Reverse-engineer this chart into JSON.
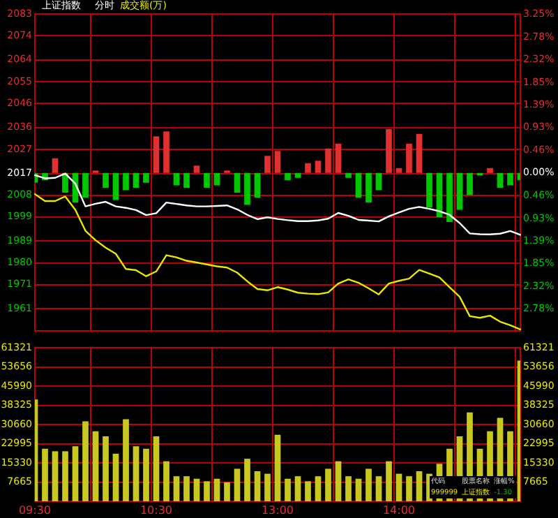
{
  "chart_data": [
    {
      "type": "bar",
      "title": "上证指数",
      "subtitle": "分时",
      "annotations": [
        "成交额(万)"
      ],
      "categories": [
        null,
        null,
        null,
        null,
        null,
        null,
        null,
        null,
        null,
        null,
        null,
        null,
        null,
        null,
        null,
        null,
        null,
        null,
        null,
        null,
        null,
        null,
        null,
        null,
        null,
        null,
        null,
        null,
        null,
        null,
        null,
        null,
        null,
        null,
        null,
        null,
        null,
        null,
        null,
        null,
        null,
        null,
        null,
        null,
        null,
        null,
        null,
        null,
        null
      ],
      "ylim": [
        1952,
        2083
      ],
      "yticks": [
        1961,
        1971,
        1980,
        1989,
        1999,
        2008,
        2017,
        2027,
        2036,
        2046,
        2055,
        2064,
        2074,
        2083
      ],
      "y2lim": [
        -3.22,
        3.25
      ],
      "y2ticks": [
        {
          "value": -2.78,
          "label": "2.78%"
        },
        {
          "value": -2.32,
          "label": "2.32%"
        },
        {
          "value": -1.85,
          "label": "1.85%"
        },
        {
          "value": -1.39,
          "label": "1.39%"
        },
        {
          "value": -0.93,
          "label": "0.93%"
        },
        {
          "value": -0.46,
          "label": "0.46%"
        },
        {
          "value": 0,
          "label": "0.00%"
        },
        {
          "value": 0.46,
          "label": "0.46%"
        },
        {
          "value": 0.93,
          "label": "0.93%"
        },
        {
          "value": 1.39,
          "label": "1.39%"
        },
        {
          "value": 1.85,
          "label": "1.85%"
        },
        {
          "value": 2.32,
          "label": "2.32%"
        },
        {
          "value": 2.78,
          "label": "2.78%"
        },
        {
          "value": 3.25,
          "label": "3.25%"
        }
      ],
      "tick_labels": "y",
      "grid": true,
      "legend": false,
      "series": [
        {
          "axis": "y2",
          "values": [
            -0.2,
            -0.15,
            0.3,
            -0.4,
            -0.6,
            -0.5,
            0.05,
            -0.3,
            -0.55,
            -0.35,
            -0.3,
            -0.2,
            0.75,
            0.85,
            -0.25,
            -0.3,
            0.15,
            -0.3,
            -0.25,
            0.05,
            -0.4,
            -0.65,
            -0.5,
            0.35,
            0.45,
            -0.15,
            -0.1,
            0.2,
            0.25,
            0.5,
            0.6,
            -0.1,
            -0.5,
            -0.6,
            -0.35,
            0.9,
            0.1,
            0.6,
            0.8,
            -0.7,
            -0.9,
            -1.0,
            -0.75,
            -0.45,
            -0.05,
            0.1,
            -0.3,
            -0.25,
            -0.15
          ],
          "colors": [
            "#00c800",
            "#00c800",
            "#e03030",
            "#00c800",
            "#00c800",
            "#00c800",
            "#e03030",
            "#00c800",
            "#00c800",
            "#00c800",
            "#00c800",
            "#00c800",
            "#e03030",
            "#e03030",
            "#00c800",
            "#00c800",
            "#e03030",
            "#00c800",
            "#00c800",
            "#e03030",
            "#00c800",
            "#00c800",
            "#00c800",
            "#e03030",
            "#e03030",
            "#00c800",
            "#00c800",
            "#e03030",
            "#e03030",
            "#e03030",
            "#e03030",
            "#00c800",
            "#00c800",
            "#00c800",
            "#00c800",
            "#e03030",
            "#e03030",
            "#e03030",
            "#e03030",
            "#00c800",
            "#00c800",
            "#00c800",
            "#00c800",
            "#00c800",
            "#00c800",
            "#e03030",
            "#00c800",
            "#00c800",
            "#00c800"
          ]
        },
        {
          "type": "line",
          "color": "#ffffff",
          "values": [
            2016.3,
            2015,
            2015.2,
            2017,
            2012.8,
            2003.4,
            2004.5,
            2005.3,
            2003.4,
            2002.8,
            2001.9,
            1999.8,
            2000.6,
            2005,
            2004.4,
            2003.8,
            2003.4,
            2003.4,
            2003.6,
            2003.8,
            2002.2,
            1999.9,
            1998.1,
            1998.9,
            1998.2,
            1997.7,
            1997.3,
            1997.3,
            1997.6,
            1998.3,
            2000.7,
            1999.5,
            1997.8,
            1997.5,
            1997.2,
            1999.3,
            2000.9,
            2002.4,
            2003.2,
            2002.4,
            2001.4,
            1999.9,
            1996.5,
            1992.2,
            1991.9,
            1991.8,
            1992.1,
            1993.2,
            1991.6
          ]
        },
        {
          "type": "line",
          "color": "#e8e800",
          "values": [
            2008.5,
            2005.6,
            2005.6,
            2007.5,
            2002,
            1993.3,
            1989.4,
            1986.3,
            1983.8,
            1977.5,
            1977,
            1974.5,
            1976.5,
            1983.2,
            1982.3,
            1980.9,
            1980.2,
            1979.4,
            1978.6,
            1978.1,
            1976,
            1972.4,
            1969.2,
            1968.7,
            1970,
            1969,
            1967.7,
            1967.3,
            1967.1,
            1967.8,
            1971.5,
            1973.2,
            1971.8,
            1969.5,
            1967,
            1971.5,
            1972.6,
            1973.5,
            1977.1,
            1975.6,
            1974,
            1970,
            1966,
            1958,
            1957.3,
            1958.2,
            1955.7,
            1954.2,
            1952.5
          ]
        }
      ]
    },
    {
      "type": "bar",
      "annotations": [
        "代码",
        "股票名称",
        "涨幅%",
        "999999",
        "上证指数",
        "-1.30"
      ],
      "categories": [
        "09:30",
        null,
        null,
        null,
        null,
        null,
        null,
        null,
        null,
        null,
        null,
        null,
        "10:30",
        null,
        null,
        null,
        null,
        null,
        null,
        null,
        null,
        null,
        null,
        null,
        "13:00",
        null,
        null,
        null,
        null,
        null,
        null,
        null,
        null,
        null,
        null,
        null,
        "14:00",
        null,
        null,
        null,
        null,
        null,
        null,
        null,
        null,
        null,
        null,
        null,
        null
      ],
      "ylim": [
        0,
        61321
      ],
      "yticks": [
        7665,
        15330,
        22995,
        30660,
        38325,
        45990,
        53656,
        61321
      ],
      "y2lim": [
        0,
        61321
      ],
      "y2ticks": [
        7665,
        15330,
        22995,
        30660,
        38325,
        45990,
        53656,
        61321
      ],
      "grid": true,
      "legend": false,
      "series": [
        {
          "color": "#c8c820",
          "values": [
            40700,
            21000,
            20000,
            20000,
            22000,
            32000,
            28000,
            26000,
            19000,
            32800,
            22000,
            21000,
            26000,
            16000,
            10000,
            10000,
            9000,
            8000,
            9000,
            7600,
            13000,
            17000,
            12000,
            11000,
            26600,
            9000,
            10000,
            8000,
            10000,
            13000,
            16000,
            10000,
            9000,
            13000,
            10000,
            16000,
            11000,
            10000,
            12000,
            11000,
            15000,
            21000,
            26000,
            35500,
            21000,
            28000,
            33400,
            28000,
            56300
          ]
        }
      ]
    }
  ]
}
